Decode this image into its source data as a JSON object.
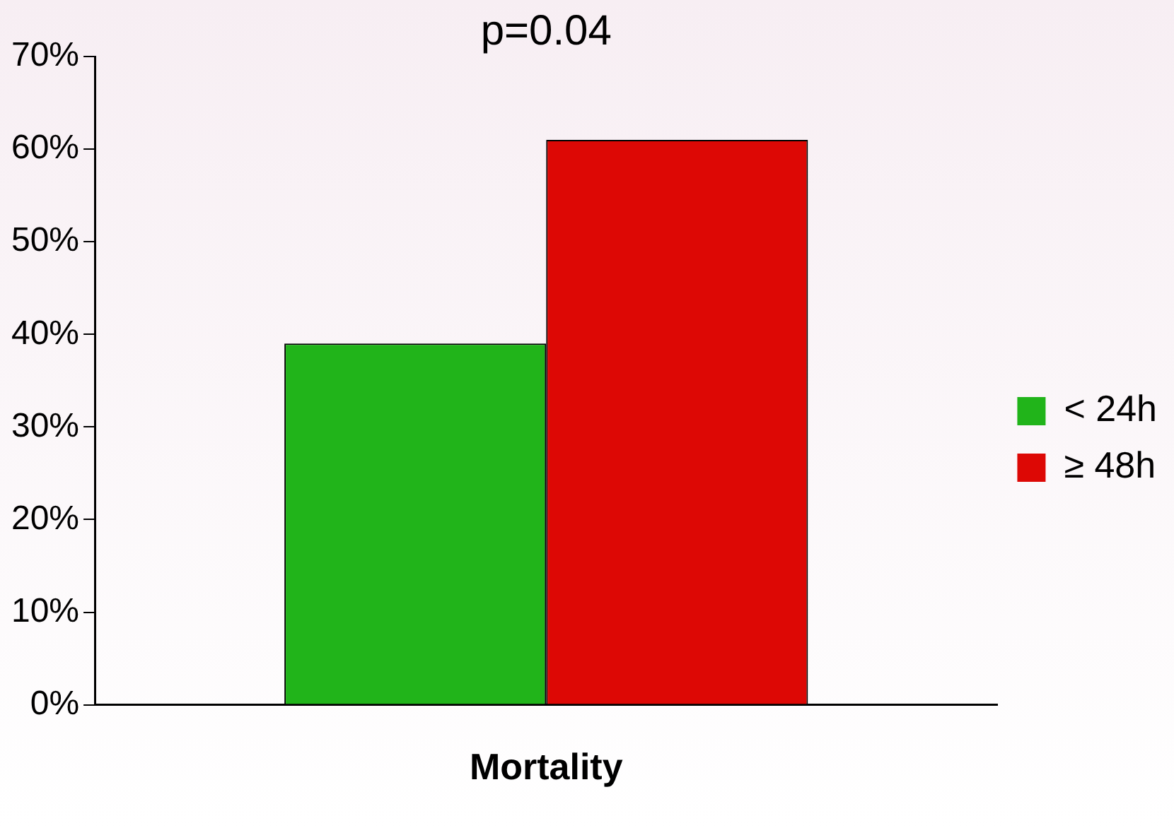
{
  "chart_data": {
    "type": "bar",
    "categories": [
      "Mortality"
    ],
    "series": [
      {
        "name": "< 24h",
        "color": "#21b41a",
        "values": [
          39
        ]
      },
      {
        "name": "≥ 48h",
        "color": "#dd0805",
        "values": [
          61
        ]
      }
    ],
    "ylim": [
      0,
      70
    ],
    "yticks": [
      {
        "value": 0,
        "label": "0%"
      },
      {
        "value": 10,
        "label": "10%"
      },
      {
        "value": 20,
        "label": "20%"
      },
      {
        "value": 30,
        "label": "30%"
      },
      {
        "value": 40,
        "label": "40%"
      },
      {
        "value": 50,
        "label": "50%"
      },
      {
        "value": 60,
        "label": "60%"
      },
      {
        "value": 70,
        "label": "70%"
      }
    ],
    "annotations": [
      "p=0.04"
    ],
    "legend": "right",
    "grid": false
  }
}
